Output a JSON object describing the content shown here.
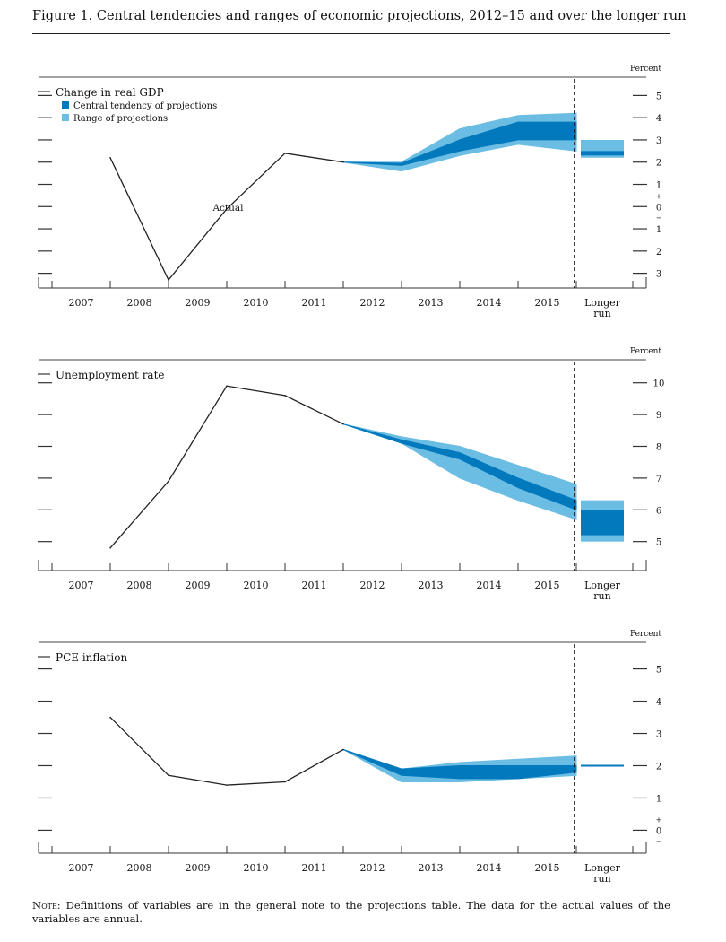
{
  "figure": {
    "title": "Figure 1. Central tendencies and ranges of economic projections, 2012–15 and over the longer run",
    "note_lead": "Note:",
    "note_text": " Definitions of variables are in the general note to the projections table. The data for the actual values of the variables are annual."
  },
  "colors": {
    "central": "#0379bd",
    "range": "#6bbde3",
    "line": "#222222"
  },
  "x_labels": [
    "2007",
    "2008",
    "2009",
    "2010",
    "2011",
    "2012",
    "2013",
    "2014",
    "2015"
  ],
  "longer_run_label": [
    "Longer",
    "run"
  ],
  "chart_data": [
    {
      "type": "line",
      "title": "Change in real GDP",
      "unit_label": "Percent",
      "ylim": [
        -3.5,
        5.5
      ],
      "y_ticks": [
        {
          "v": 5,
          "label": "5"
        },
        {
          "v": 4,
          "label": "4"
        },
        {
          "v": 3,
          "label": "3"
        },
        {
          "v": 2,
          "label": "2"
        },
        {
          "v": 1,
          "label": "1"
        },
        {
          "v": 0,
          "label": "0"
        },
        {
          "v": -1,
          "label": "1"
        },
        {
          "v": -2,
          "label": "2"
        },
        {
          "v": -3,
          "label": "3"
        }
      ],
      "zero_signs": true,
      "legend": [
        "Central tendency of projections",
        "Range of projections"
      ],
      "annotation": {
        "text": "Actual",
        "x": 2009.3,
        "y": -0.1
      },
      "actual": {
        "x": [
          2007,
          2008,
          2009,
          2010,
          2011
        ],
        "y": [
          2.2,
          -3.3,
          -0.1,
          2.4,
          2.0
        ]
      },
      "projection_x": [
        2011,
        2012,
        2013,
        2014,
        2015
      ],
      "range_upper": [
        2.0,
        2.0,
        3.5,
        4.1,
        4.2
      ],
      "range_lower": [
        2.0,
        1.6,
        2.3,
        2.8,
        2.5
      ],
      "central_upper": [
        2.0,
        1.95,
        3.0,
        3.8,
        3.8
      ],
      "central_lower": [
        2.0,
        1.85,
        2.5,
        3.0,
        3.0
      ],
      "longer_run": {
        "range": [
          2.2,
          3.0
        ],
        "central": [
          2.3,
          2.5
        ]
      }
    },
    {
      "type": "line",
      "title": "Unemployment rate",
      "unit_label": "Percent",
      "ylim": [
        4.2,
        10.5
      ],
      "y_ticks": [
        {
          "v": 10,
          "label": "10"
        },
        {
          "v": 9,
          "label": "9"
        },
        {
          "v": 8,
          "label": "8"
        },
        {
          "v": 7,
          "label": "7"
        },
        {
          "v": 6,
          "label": "6"
        },
        {
          "v": 5,
          "label": "5"
        }
      ],
      "zero_signs": false,
      "legend": [],
      "actual": {
        "x": [
          2007,
          2008,
          2009,
          2010,
          2011
        ],
        "y": [
          4.8,
          6.9,
          9.9,
          9.6,
          8.7
        ]
      },
      "projection_x": [
        2011,
        2012,
        2013,
        2014,
        2015
      ],
      "range_upper": [
        8.7,
        8.3,
        8.0,
        7.4,
        6.8
      ],
      "range_lower": [
        8.7,
        8.1,
        7.0,
        6.3,
        5.7
      ],
      "central_upper": [
        8.7,
        8.2,
        7.8,
        7.0,
        6.3
      ],
      "central_lower": [
        8.7,
        8.1,
        7.6,
        6.7,
        6.0
      ],
      "longer_run": {
        "range": [
          5.0,
          6.3
        ],
        "central": [
          5.2,
          6.0
        ]
      }
    },
    {
      "type": "line",
      "title": "PCE inflation",
      "unit_label": "Percent",
      "ylim": [
        -0.6,
        5.6
      ],
      "y_ticks": [
        {
          "v": 5,
          "label": "5"
        },
        {
          "v": 4,
          "label": "4"
        },
        {
          "v": 3,
          "label": "3"
        },
        {
          "v": 2,
          "label": "2"
        },
        {
          "v": 1,
          "label": "1"
        },
        {
          "v": 0,
          "label": "0"
        }
      ],
      "zero_signs": true,
      "legend": [],
      "actual": {
        "x": [
          2007,
          2008,
          2009,
          2010,
          2011
        ],
        "y": [
          3.5,
          1.7,
          1.4,
          1.5,
          2.5
        ]
      },
      "projection_x": [
        2011,
        2012,
        2013,
        2014,
        2015
      ],
      "range_upper": [
        2.5,
        1.9,
        2.1,
        2.2,
        2.3
      ],
      "range_lower": [
        2.5,
        1.5,
        1.5,
        1.6,
        1.7
      ],
      "central_upper": [
        2.5,
        1.9,
        2.0,
        2.0,
        2.0
      ],
      "central_lower": [
        2.5,
        1.7,
        1.6,
        1.6,
        1.8
      ],
      "longer_run": {
        "range": [
          2.0,
          2.0
        ],
        "central": [
          2.0,
          2.0
        ]
      }
    }
  ]
}
